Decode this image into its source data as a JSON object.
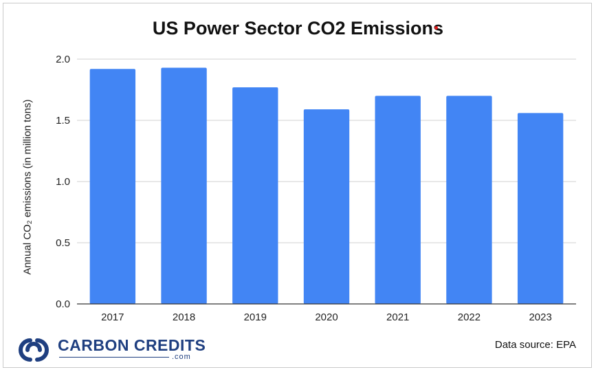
{
  "colors": {
    "bar": "#4285f4",
    "grid": "#d0d0d0",
    "axis": "#333333",
    "text": "#222222",
    "logo": "#1f3f80"
  },
  "chart_data": {
    "type": "bar",
    "title": "US Power Sector CO2 Emissions",
    "xlabel": "",
    "ylabel": "Annual CO₂ emissions (in million tons)",
    "categories": [
      "2017",
      "2018",
      "2019",
      "2020",
      "2021",
      "2022",
      "2023"
    ],
    "values": [
      1.92,
      1.93,
      1.77,
      1.59,
      1.7,
      1.7,
      1.56
    ],
    "ylim": [
      0,
      2.0
    ],
    "yticks": [
      "0.0",
      "0.5",
      "1.0",
      "1.5",
      "2.0"
    ],
    "grid": true,
    "legend": "none"
  },
  "footer": {
    "source": "Data source: EPA",
    "logo_name": "CARBON CREDITS",
    "logo_domain": ".com",
    "logo_icon": "carbon-credits-logo-icon"
  }
}
